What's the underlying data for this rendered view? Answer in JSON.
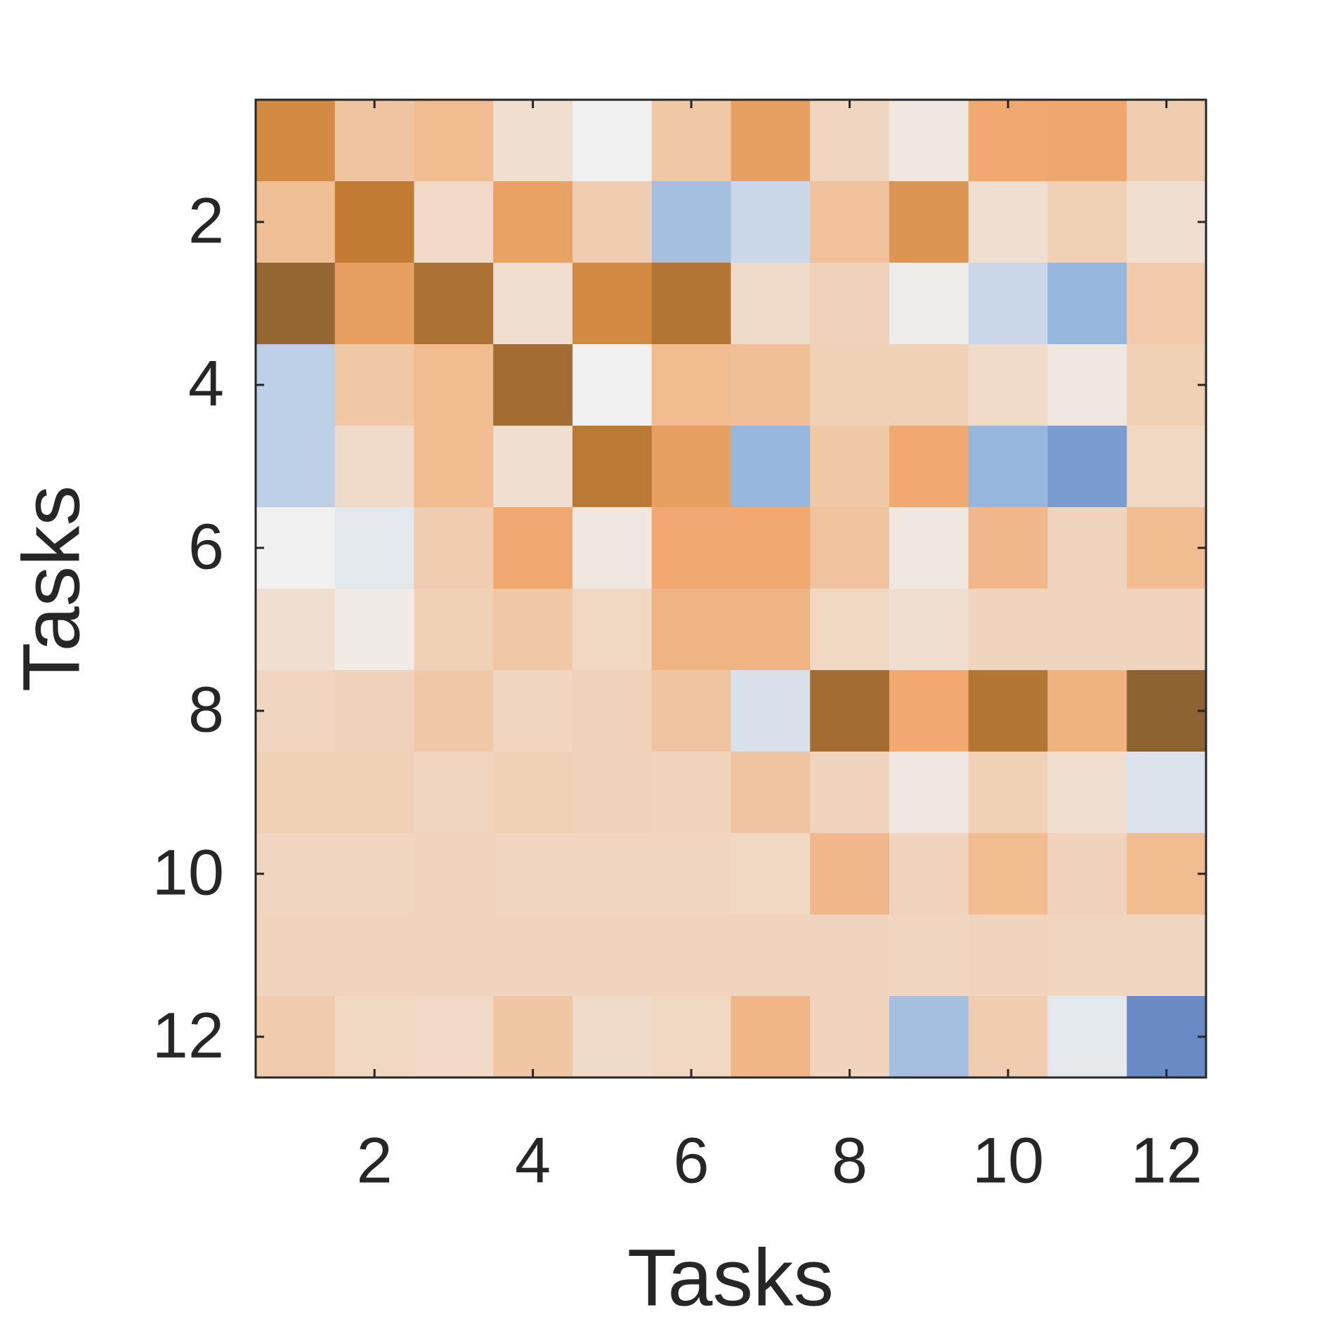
{
  "chart_data": {
    "type": "heatmap",
    "xlabel": "Tasks",
    "ylabel": "Tasks",
    "xlim": [
      0.5,
      12.5
    ],
    "ylim": [
      0.5,
      12.5
    ],
    "y_reversed": true,
    "xticks": [
      2,
      4,
      6,
      8,
      10,
      12
    ],
    "yticks": [
      2,
      4,
      6,
      8,
      10,
      12
    ],
    "clim": [
      -1,
      1
    ],
    "colormap": [
      "#4a66b0",
      "#8aaedb",
      "#f0f0f0",
      "#f0aa70",
      "#c98035",
      "#8c6230"
    ],
    "z": [
      [
        0.5,
        0.05,
        0.1,
        -0.1,
        -0.2,
        0.03,
        0.3,
        -0.05,
        -0.15,
        0.2,
        0.22,
        0.0
      ],
      [
        0.08,
        0.65,
        -0.07,
        0.28,
        0.0,
        -0.5,
        -0.35,
        0.07,
        0.4,
        -0.1,
        -0.02,
        -0.1
      ],
      [
        0.95,
        0.3,
        0.8,
        -0.1,
        0.5,
        0.75,
        -0.08,
        -0.03,
        -0.18,
        -0.35,
        -0.55,
        0.02
      ],
      [
        -0.4,
        0.03,
        0.1,
        0.85,
        -0.2,
        0.1,
        0.08,
        -0.02,
        -0.02,
        -0.08,
        -0.15,
        -0.02
      ],
      [
        -0.4,
        -0.08,
        0.1,
        -0.1,
        0.7,
        0.3,
        -0.55,
        0.03,
        0.2,
        -0.55,
        -0.7,
        -0.06
      ],
      [
        -0.2,
        -0.25,
        0.0,
        0.2,
        -0.15,
        0.2,
        0.2,
        0.06,
        -0.15,
        0.12,
        -0.04,
        0.1
      ],
      [
        -0.1,
        -0.17,
        -0.02,
        0.03,
        -0.06,
        0.14,
        0.14,
        -0.06,
        -0.1,
        -0.04,
        -0.04,
        -0.04
      ],
      [
        -0.05,
        -0.03,
        0.03,
        -0.05,
        -0.03,
        0.05,
        -0.3,
        0.85,
        0.2,
        0.75,
        0.15,
        1.0
      ],
      [
        -0.02,
        -0.02,
        -0.05,
        -0.02,
        -0.03,
        -0.04,
        0.05,
        -0.04,
        -0.15,
        -0.02,
        -0.1,
        -0.28
      ],
      [
        -0.05,
        -0.05,
        -0.04,
        -0.05,
        -0.05,
        -0.05,
        -0.06,
        0.12,
        -0.04,
        0.1,
        -0.03,
        0.1
      ],
      [
        -0.04,
        -0.04,
        -0.04,
        -0.04,
        -0.04,
        -0.04,
        -0.04,
        -0.04,
        -0.05,
        -0.04,
        -0.05,
        -0.05
      ],
      [
        0.01,
        -0.06,
        -0.07,
        0.04,
        -0.08,
        -0.06,
        0.13,
        -0.04,
        -0.5,
        0.0,
        -0.25,
        -0.8
      ]
    ]
  }
}
